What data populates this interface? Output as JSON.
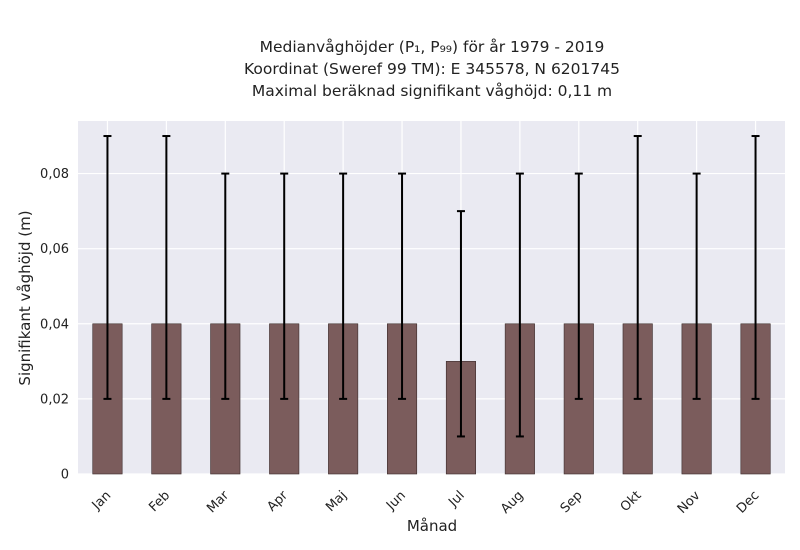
{
  "chart_data": {
    "type": "bar",
    "title_lines": [
      "Medianvåghöjder (P₁, P₉₉) för år 1979 - 2019",
      "Koordinat (Sweref 99 TM): E 345578, N 6201745",
      "Maximal beräknad signifikant våghöjd: 0,11 m"
    ],
    "xlabel": "Månad",
    "ylabel": "Signifikant våghöjd (m)",
    "categories": [
      "Jan",
      "Feb",
      "Mar",
      "Apr",
      "Maj",
      "Jun",
      "Jul",
      "Aug",
      "Sep",
      "Okt",
      "Nov",
      "Dec"
    ],
    "values": [
      0.04,
      0.04,
      0.04,
      0.04,
      0.04,
      0.04,
      0.03,
      0.04,
      0.04,
      0.04,
      0.04,
      0.04
    ],
    "error_low": [
      0.02,
      0.02,
      0.02,
      0.02,
      0.02,
      0.02,
      0.01,
      0.01,
      0.02,
      0.02,
      0.02,
      0.02
    ],
    "error_high": [
      0.09,
      0.09,
      0.08,
      0.08,
      0.08,
      0.08,
      0.07,
      0.08,
      0.08,
      0.09,
      0.08,
      0.09
    ],
    "ylim": [
      0,
      0.094
    ],
    "yticks": [
      0,
      0.02,
      0.04,
      0.06,
      0.08
    ],
    "ytick_labels": [
      "0",
      "0,02",
      "0,04",
      "0,06",
      "0,08"
    ],
    "grid": true,
    "bar_color": "#7b5c5c",
    "background_color": "#eaeaf2",
    "grid_color": "#ffffff",
    "errorbar_color": "#000000"
  }
}
